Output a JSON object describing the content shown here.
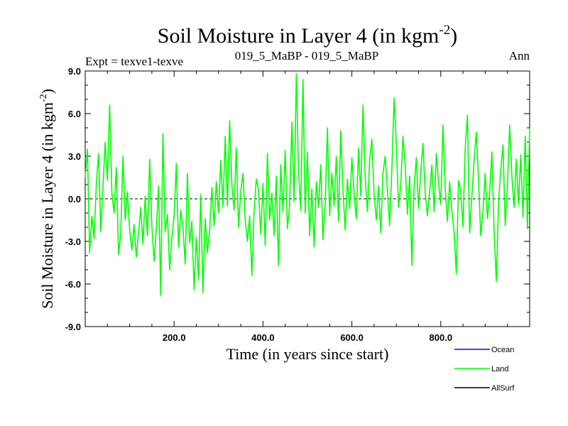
{
  "chart_data": {
    "type": "line",
    "title": "Soil Moisture in Layer 4 (in kgm",
    "title_sup": "-2",
    "title_close": ")",
    "subtitle_left": "Expt = texve1-texve",
    "subtitle_center": "019_5_MaBP - 019_5_MaBP",
    "subtitle_right": "Ann",
    "xlabel": "Time (in years since start)",
    "ylabel": "Soil Moisture in Layer 4 (in kgm",
    "ylabel_sup": "-2",
    "ylabel_close": ")",
    "xlim": [
      0,
      1000
    ],
    "ylim": [
      -9,
      9
    ],
    "x_ticks": [
      200,
      400,
      600,
      800
    ],
    "x_tick_labels": [
      "200.0",
      "400.0",
      "600.0",
      "800.0"
    ],
    "y_ticks": [
      -9,
      -6,
      -3,
      0,
      3,
      6,
      9
    ],
    "y_tick_labels": [
      "-9.0",
      "-6.0",
      "-3.0",
      "0.0",
      "3.0",
      "6.0",
      "9.0"
    ],
    "reference_line": 0,
    "series": [
      {
        "name": "Ocean",
        "color": "#0000ff",
        "x": [],
        "values": []
      },
      {
        "name": "Land",
        "color": "#00ff00",
        "x": [
          0,
          5,
          10,
          15,
          20,
          25,
          30,
          35,
          40,
          45,
          50,
          55,
          60,
          65,
          70,
          75,
          80,
          85,
          90,
          95,
          100,
          105,
          110,
          115,
          120,
          125,
          130,
          135,
          140,
          145,
          150,
          155,
          160,
          165,
          170,
          175,
          180,
          185,
          190,
          195,
          200,
          205,
          210,
          215,
          220,
          225,
          230,
          235,
          240,
          245,
          250,
          255,
          260,
          265,
          270,
          275,
          280,
          285,
          290,
          295,
          300,
          305,
          310,
          315,
          320,
          325,
          330,
          335,
          340,
          345,
          350,
          355,
          360,
          365,
          370,
          375,
          380,
          385,
          390,
          395,
          400,
          405,
          410,
          415,
          420,
          425,
          430,
          435,
          440,
          445,
          450,
          455,
          460,
          465,
          470,
          475,
          480,
          485,
          490,
          495,
          500,
          505,
          510,
          515,
          520,
          525,
          530,
          535,
          540,
          545,
          550,
          555,
          560,
          565,
          570,
          575,
          580,
          585,
          590,
          595,
          600,
          605,
          610,
          615,
          620,
          625,
          630,
          635,
          640,
          645,
          650,
          655,
          660,
          665,
          670,
          675,
          680,
          685,
          690,
          695,
          700,
          705,
          710,
          715,
          720,
          725,
          730,
          735,
          740,
          745,
          750,
          755,
          760,
          765,
          770,
          775,
          780,
          785,
          790,
          795,
          800,
          805,
          810,
          815,
          820,
          825,
          830,
          835,
          840,
          845,
          850,
          855,
          860,
          865,
          870,
          875,
          880,
          885,
          890,
          895,
          900,
          905,
          910,
          915,
          920,
          925,
          930,
          935,
          940,
          945,
          950,
          955,
          960,
          965,
          970,
          975,
          980,
          985,
          990,
          995,
          1000
        ],
        "values": [
          1.5,
          3.5,
          -3.8,
          -1.2,
          -2.8,
          1.0,
          3.2,
          -2.3,
          0.8,
          4.0,
          1.3,
          6.6,
          0.4,
          -1.0,
          2.2,
          -3.9,
          -2.5,
          3.0,
          -1.5,
          0.5,
          -2.2,
          -3.6,
          -1.8,
          -4.1,
          -2.4,
          -0.6,
          -3.2,
          0.2,
          -2.6,
          2.8,
          -1.9,
          -4.4,
          -2.1,
          0.9,
          -6.8,
          4.6,
          -2.3,
          -1.1,
          -5.0,
          -2.8,
          -1.2,
          2.5,
          -3.4,
          -0.8,
          -2.0,
          -4.6,
          1.8,
          -3.1,
          -1.6,
          -6.4,
          -2.7,
          -5.7,
          0.3,
          -6.6,
          -1.4,
          -3.8,
          -2.2,
          0.8,
          -1.9,
          1.2,
          -1.0,
          2.7,
          -0.6,
          4.4,
          -0.5,
          5.5,
          1.0,
          -0.8,
          3.6,
          -2.0,
          0.5,
          1.8,
          -1.5,
          -3.0,
          -1.2,
          -5.4,
          -0.9,
          1.4,
          0.6,
          -2.5,
          1.1,
          -3.3,
          3.2,
          -1.5,
          0.4,
          -2.6,
          1.6,
          -4.7,
          2.4,
          -0.9,
          3.4,
          -2.1,
          -0.4,
          5.4,
          -0.2,
          8.8,
          1.9,
          -0.8,
          8.4,
          -1.0,
          3.3,
          -2.6,
          0.7,
          -3.4,
          1.2,
          -0.6,
          2.4,
          -2.9,
          -0.3,
          5.0,
          -1.2,
          1.8,
          -0.5,
          3.0,
          -1.6,
          4.8,
          0.6,
          -2.2,
          1.4,
          -0.7,
          2.9,
          0.4,
          -1.4,
          3.6,
          0.2,
          6.6,
          1.5,
          -0.9,
          2.8,
          4.2,
          0.3,
          -1.5,
          0.9,
          -2.4,
          1.8,
          3.0,
          0.5,
          -1.9,
          2.1,
          7.1,
          3.8,
          -0.6,
          1.0,
          4.4,
          2.4,
          -1.1,
          1.6,
          -4.7,
          0.8,
          2.9,
          -0.7,
          1.9,
          3.9,
          0.4,
          -1.2,
          0.5,
          2.4,
          -0.9,
          3.2,
          1.1,
          -0.4,
          5.2,
          0.8,
          -1.6,
          1.2,
          -0.8,
          -2.4,
          -5.3,
          1.3,
          0.6,
          -2.0,
          3.6,
          5.9,
          -2.4,
          0.2,
          2.7,
          4.7,
          1.3,
          -2.6,
          -0.9,
          1.8,
          -1.4,
          0.4,
          3.3,
          -2.3,
          -5.8,
          -0.3,
          2.1,
          3.8,
          -1.9,
          0.9,
          5.2,
          1.6,
          -0.6,
          2.8,
          -0.4,
          3.1,
          -1.3,
          4.4,
          -2.1,
          5.0
        ]
      },
      {
        "name": "AllSurf",
        "color": "#000000",
        "x": [],
        "values": []
      }
    ],
    "legend_position": "bottom-right"
  }
}
